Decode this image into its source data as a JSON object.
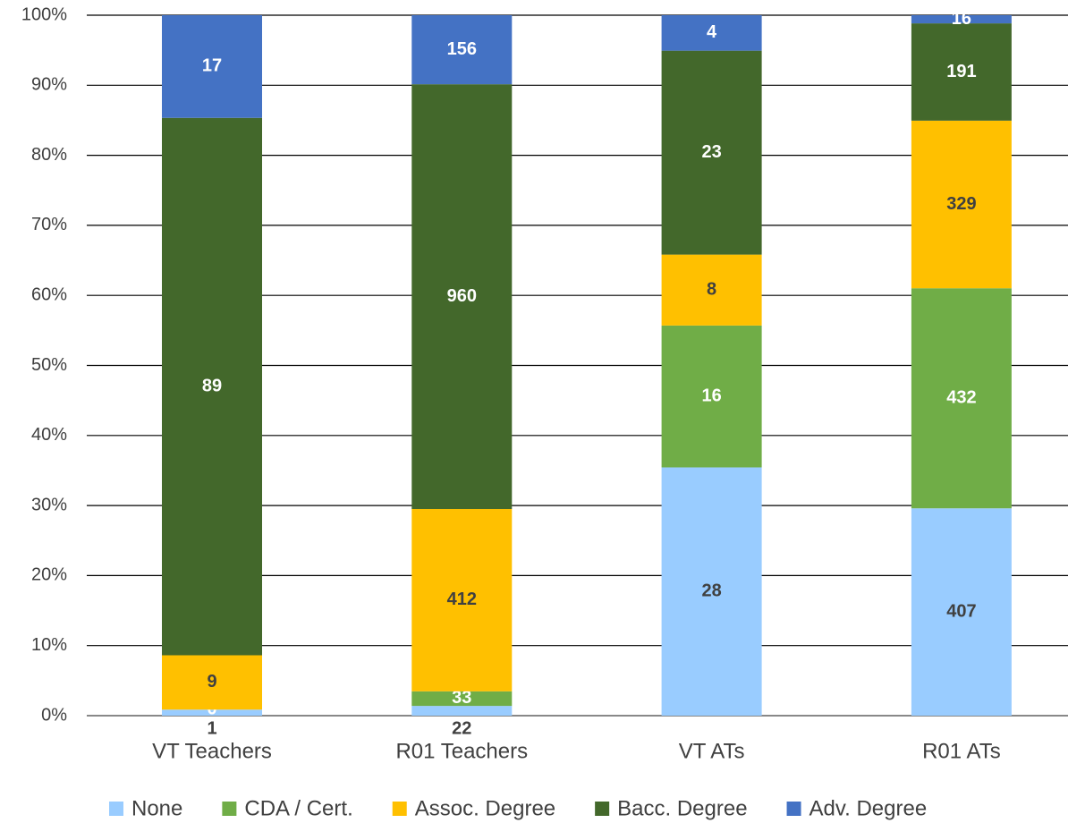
{
  "chart_data": {
    "type": "bar",
    "stacking": "percent",
    "categories": [
      "VT Teachers",
      "R01 Teachers",
      "VT ATs",
      "R01 ATs"
    ],
    "series": [
      {
        "name": "None",
        "color": "#99ccff",
        "label_color": "#404040",
        "values": [
          1,
          22,
          28,
          407
        ]
      },
      {
        "name": "CDA / Cert.",
        "color": "#70ad47",
        "label_color": "#ffffff",
        "values": [
          0,
          33,
          16,
          432
        ]
      },
      {
        "name": "Assoc. Degree",
        "color": "#ffc000",
        "label_color": "#404040",
        "values": [
          9,
          412,
          8,
          329
        ]
      },
      {
        "name": "Bacc. Degree",
        "color": "#43682b",
        "label_color": "#ffffff",
        "values": [
          89,
          960,
          23,
          191
        ]
      },
      {
        "name": "Adv. Degree",
        "color": "#4472c4",
        "label_color": "#ffffff",
        "values": [
          17,
          156,
          4,
          16
        ]
      }
    ],
    "ylim": [
      0,
      100
    ],
    "yticks": [
      {
        "value": 0,
        "label": "0%"
      },
      {
        "value": 10,
        "label": "10%"
      },
      {
        "value": 20,
        "label": "20%"
      },
      {
        "value": 30,
        "label": "30%"
      },
      {
        "value": 40,
        "label": "40%"
      },
      {
        "value": 50,
        "label": "50%"
      },
      {
        "value": 60,
        "label": "60%"
      },
      {
        "value": 70,
        "label": "70%"
      },
      {
        "value": 80,
        "label": "80%"
      },
      {
        "value": 90,
        "label": "90%"
      },
      {
        "value": 100,
        "label": "100%"
      }
    ],
    "grid": true,
    "legend": "bottom"
  }
}
